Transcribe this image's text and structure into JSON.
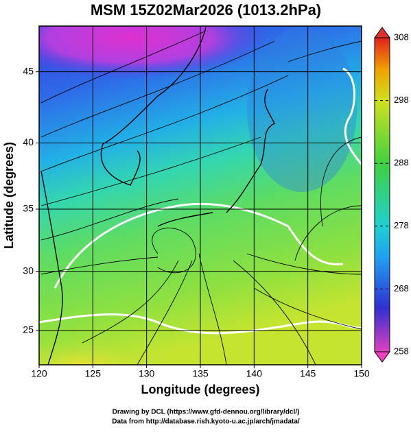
{
  "map": {
    "title": "MSM 15Z02Mar2026 (1013.2hPa)",
    "x_label": "Longitude (degrees)",
    "y_label": "Latitude  (degrees)",
    "projection": "mercator",
    "xlim": [
      120,
      150
    ],
    "xticks": [
      120,
      125,
      130,
      135,
      140,
      145,
      150
    ],
    "ylim": [
      22,
      48
    ],
    "yticks": [
      25,
      30,
      35,
      40,
      45
    ],
    "grid": true,
    "colorbar": {
      "lim": [
        258,
        308
      ],
      "ticks": [
        258,
        268,
        278,
        288,
        298,
        308
      ]
    },
    "credits": [
      "Drawing by DCL (https://www.gfd-dennou.org/library/dcl/)",
      "Data from http://database.rish.kyoto-u.ac.jp/arch/jmadata/"
    ]
  }
}
